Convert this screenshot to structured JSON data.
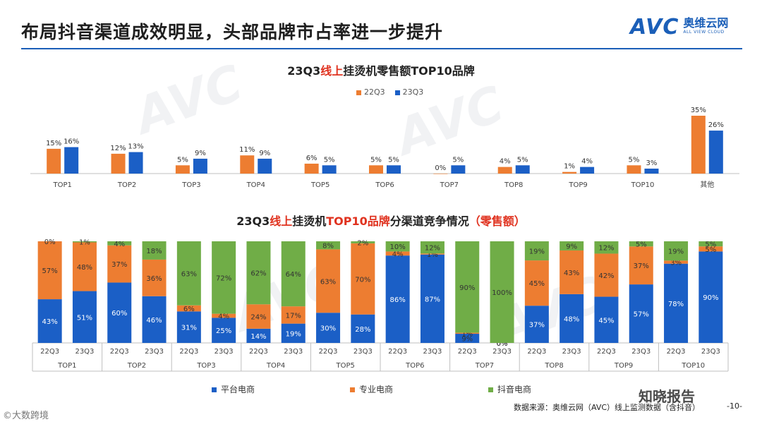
{
  "header": {
    "title": "布局抖音渠道成效明显，头部品牌市占率进一步提升",
    "logo_mark": "AVC",
    "logo_cn": "奥维云网",
    "logo_en": "ALL VIEW CLOUD"
  },
  "watermark_text": "AVC",
  "footer": {
    "legend": [
      "平台电商",
      "专业电商",
      "抖音电商"
    ],
    "source": "数据来源：奥维云网（AVC）线上监测数据（含抖音）",
    "page": "-10-",
    "watermark_left": "©大数跨境",
    "watermark_right": "知晓报告"
  },
  "colors": {
    "orange": "#ed7d31",
    "blue": "#1b5fc6",
    "green": "#70ad47",
    "red": "#e0321f"
  },
  "chart_data": [
    {
      "type": "bar",
      "title_parts": [
        "23Q3",
        "线上",
        "挂烫机零售额TOP10品牌"
      ],
      "categories": [
        "TOP1",
        "TOP2",
        "TOP3",
        "TOP4",
        "TOP5",
        "TOP6",
        "TOP7",
        "TOP8",
        "TOP9",
        "TOP10",
        "其他"
      ],
      "series": [
        {
          "name": "22Q3",
          "values": [
            15,
            12,
            5,
            11,
            6,
            5,
            0,
            4,
            1,
            5,
            35
          ]
        },
        {
          "name": "23Q3",
          "values": [
            16,
            13,
            9,
            9,
            5,
            5,
            5,
            5,
            4,
            3,
            26
          ]
        }
      ],
      "value_suffix": "%",
      "ylim": [
        0,
        35
      ],
      "legend_position": "top-center"
    },
    {
      "type": "stacked-bar",
      "title_parts": [
        "23Q3",
        "线上",
        "挂烫机",
        "TOP10品牌",
        "分渠道竞争情况",
        "（零售额）"
      ],
      "groups": [
        "TOP1",
        "TOP2",
        "TOP3",
        "TOP4",
        "TOP5",
        "TOP6",
        "TOP7",
        "TOP8",
        "TOP9",
        "TOP10"
      ],
      "periods": [
        "22Q3",
        "23Q3"
      ],
      "series_names": [
        "平台电商",
        "专业电商",
        "抖音电商"
      ],
      "bars": [
        {
          "group": "TOP1",
          "period": "22Q3",
          "values": [
            43,
            57,
            0
          ]
        },
        {
          "group": "TOP1",
          "period": "23Q3",
          "values": [
            51,
            48,
            1
          ]
        },
        {
          "group": "TOP2",
          "period": "22Q3",
          "values": [
            60,
            37,
            4
          ]
        },
        {
          "group": "TOP2",
          "period": "23Q3",
          "values": [
            46,
            36,
            18
          ]
        },
        {
          "group": "TOP3",
          "period": "22Q3",
          "values": [
            31,
            6,
            63
          ]
        },
        {
          "group": "TOP3",
          "period": "23Q3",
          "values": [
            25,
            4,
            72
          ]
        },
        {
          "group": "TOP4",
          "period": "22Q3",
          "values": [
            14,
            24,
            62
          ]
        },
        {
          "group": "TOP4",
          "period": "23Q3",
          "values": [
            19,
            17,
            64
          ]
        },
        {
          "group": "TOP5",
          "period": "22Q3",
          "values": [
            30,
            63,
            8
          ]
        },
        {
          "group": "TOP5",
          "period": "23Q3",
          "values": [
            28,
            70,
            2
          ]
        },
        {
          "group": "TOP6",
          "period": "22Q3",
          "values": [
            86,
            4,
            10
          ]
        },
        {
          "group": "TOP6",
          "period": "23Q3",
          "values": [
            87,
            1,
            12
          ]
        },
        {
          "group": "TOP7",
          "period": "22Q3",
          "values": [
            9,
            1,
            90
          ]
        },
        {
          "group": "TOP7",
          "period": "23Q3",
          "values": [
            0,
            0,
            100
          ]
        },
        {
          "group": "TOP8",
          "period": "22Q3",
          "values": [
            37,
            45,
            19
          ]
        },
        {
          "group": "TOP8",
          "period": "23Q3",
          "values": [
            48,
            43,
            9
          ]
        },
        {
          "group": "TOP9",
          "period": "22Q3",
          "values": [
            45,
            42,
            12
          ]
        },
        {
          "group": "TOP9",
          "period": "23Q3",
          "values": [
            57,
            37,
            5
          ]
        },
        {
          "group": "TOP10",
          "period": "22Q3",
          "values": [
            78,
            3,
            19
          ]
        },
        {
          "group": "TOP10",
          "period": "23Q3",
          "values": [
            90,
            5,
            5
          ]
        }
      ],
      "value_suffix": "%",
      "ylim": [
        0,
        100
      ]
    }
  ]
}
